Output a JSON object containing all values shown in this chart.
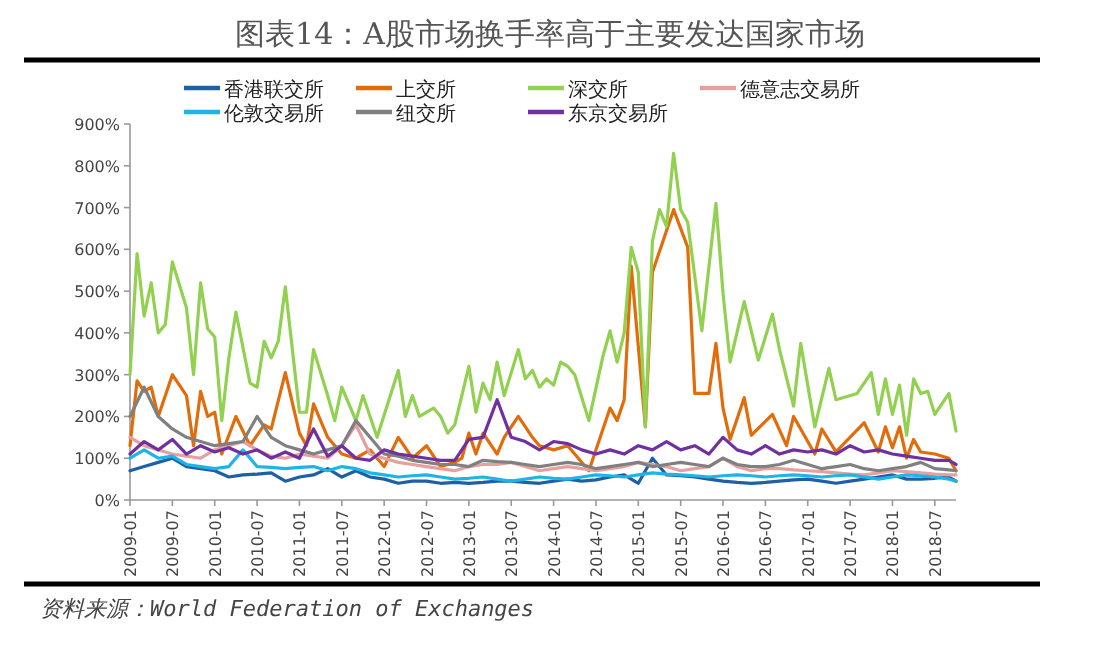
{
  "chart_data": {
    "type": "line",
    "title": "图表14：A股市场换手率高于主要发达国家市场",
    "annotations": [
      "资料来源：World Federation of Exchanges"
    ],
    "legend": "top",
    "marker": "none",
    "line_style": "solid",
    "ylim": [
      0,
      900
    ],
    "yticks": [
      {
        "value": 0,
        "label": "0%"
      },
      {
        "value": 100,
        "label": "100%"
      },
      {
        "value": 200,
        "label": "200%"
      },
      {
        "value": 300,
        "label": "300%"
      },
      {
        "value": 400,
        "label": "400%"
      },
      {
        "value": 500,
        "label": "500%"
      },
      {
        "value": 600,
        "label": "600%"
      },
      {
        "value": 700,
        "label": "700%"
      },
      {
        "value": 800,
        "label": "800%"
      },
      {
        "value": 900,
        "label": "900%"
      }
    ],
    "xlim": [
      "2009-01",
      "2018-10"
    ],
    "xticks": [
      "2009-01",
      "2009-07",
      "2010-01",
      "2010-07",
      "2011-01",
      "2011-07",
      "2012-01",
      "2012-07",
      "2013-01",
      "2013-07",
      "2014-01",
      "2014-07",
      "2015-01",
      "2015-07",
      "2016-01",
      "2016-07",
      "2017-01",
      "2017-07",
      "2018-01",
      "2018-07"
    ],
    "x": [
      "2009-01",
      "2009-03",
      "2009-05",
      "2009-07",
      "2009-09",
      "2009-11",
      "2010-01",
      "2010-03",
      "2010-05",
      "2010-07",
      "2010-09",
      "2010-11",
      "2011-01",
      "2011-03",
      "2011-05",
      "2011-07",
      "2011-09",
      "2011-11",
      "2012-01",
      "2012-03",
      "2012-05",
      "2012-07",
      "2012-09",
      "2012-11",
      "2013-01",
      "2013-03",
      "2013-05",
      "2013-07",
      "2013-09",
      "2013-11",
      "2014-01",
      "2014-03",
      "2014-05",
      "2014-07",
      "2014-09",
      "2014-11",
      "2015-01",
      "2015-03",
      "2015-05",
      "2015-07",
      "2015-09",
      "2015-11",
      "2016-01",
      "2016-03",
      "2016-05",
      "2016-07",
      "2016-09",
      "2016-11",
      "2017-01",
      "2017-03",
      "2017-05",
      "2017-07",
      "2017-09",
      "2017-11",
      "2018-01",
      "2018-03",
      "2018-05",
      "2018-07",
      "2018-09",
      "2018-10"
    ],
    "series": [
      {
        "name": "香港联交所",
        "color": "#1f5fa6",
        "values": [
          70,
          80,
          90,
          100,
          80,
          75,
          70,
          55,
          60,
          62,
          65,
          45,
          55,
          60,
          75,
          55,
          70,
          55,
          50,
          40,
          45,
          45,
          40,
          42,
          40,
          42,
          45,
          45,
          42,
          40,
          45,
          50,
          45,
          48,
          55,
          60,
          40,
          100,
          60,
          58,
          55,
          50,
          45,
          42,
          40,
          42,
          45,
          48,
          50,
          45,
          40,
          45,
          50,
          55,
          60,
          50,
          50,
          52,
          55,
          45
        ]
      },
      {
        "name": "上交所",
        "color": "#e36c0a",
        "x": [
          "2009-01",
          "2009-02",
          "2009-03",
          "2009-04",
          "2009-05",
          "2009-07",
          "2009-09",
          "2009-10",
          "2009-11",
          "2009-12",
          "2010-01",
          "2010-02",
          "2010-04",
          "2010-06",
          "2010-08",
          "2010-09",
          "2010-11",
          "2011-01",
          "2011-02",
          "2011-03",
          "2011-05",
          "2011-07",
          "2011-09",
          "2011-11",
          "2012-01",
          "2012-03",
          "2012-05",
          "2012-07",
          "2012-09",
          "2012-11",
          "2012-12",
          "2013-01",
          "2013-02",
          "2013-03",
          "2013-05",
          "2013-06",
          "2013-08",
          "2013-10",
          "2013-11",
          "2014-01",
          "2014-03",
          "2014-06",
          "2014-08",
          "2014-09",
          "2014-10",
          "2014-11",
          "2014-12",
          "2015-02",
          "2015-03",
          "2015-04",
          "2015-06",
          "2015-08",
          "2015-09",
          "2015-11",
          "2015-12",
          "2016-01",
          "2016-02",
          "2016-04",
          "2016-05",
          "2016-08",
          "2016-10",
          "2016-11",
          "2017-02",
          "2017-03",
          "2017-05",
          "2017-09",
          "2017-11",
          "2017-12",
          "2018-01",
          "2018-02",
          "2018-03",
          "2018-04",
          "2018-05",
          "2018-07",
          "2018-09",
          "2018-10"
        ],
        "values": [
          130,
          285,
          260,
          270,
          200,
          300,
          250,
          130,
          260,
          200,
          210,
          110,
          200,
          130,
          180,
          170,
          305,
          160,
          130,
          230,
          150,
          110,
          100,
          120,
          80,
          150,
          100,
          130,
          80,
          90,
          100,
          160,
          110,
          160,
          110,
          150,
          200,
          150,
          130,
          120,
          130,
          70,
          170,
          220,
          190,
          240,
          560,
          175,
          545,
          595,
          695,
          605,
          255,
          255,
          375,
          220,
          145,
          245,
          155,
          205,
          130,
          200,
          110,
          170,
          115,
          185,
          115,
          175,
          125,
          175,
          100,
          145,
          115,
          110,
          100,
          70
        ]
      },
      {
        "name": "深交所",
        "color": "#92d050",
        "x": [
          "2009-01",
          "2009-02",
          "2009-03",
          "2009-04",
          "2009-05",
          "2009-06",
          "2009-07",
          "2009-09",
          "2009-10",
          "2009-11",
          "2009-12",
          "2010-01",
          "2010-02",
          "2010-03",
          "2010-04",
          "2010-06",
          "2010-07",
          "2010-08",
          "2010-09",
          "2010-10",
          "2010-11",
          "2011-01",
          "2011-02",
          "2011-03",
          "2011-05",
          "2011-06",
          "2011-07",
          "2011-09",
          "2011-10",
          "2011-12",
          "2012-03",
          "2012-04",
          "2012-05",
          "2012-06",
          "2012-08",
          "2012-09",
          "2012-10",
          "2012-11",
          "2013-01",
          "2013-02",
          "2013-03",
          "2013-04",
          "2013-05",
          "2013-06",
          "2013-08",
          "2013-09",
          "2013-10",
          "2013-11",
          "2013-12",
          "2014-01",
          "2014-02",
          "2014-03",
          "2014-04",
          "2014-06",
          "2014-08",
          "2014-09",
          "2014-10",
          "2014-11",
          "2014-12",
          "2015-01",
          "2015-02",
          "2015-03",
          "2015-04",
          "2015-05",
          "2015-06",
          "2015-07",
          "2015-08",
          "2015-10",
          "2015-12",
          "2016-01",
          "2016-02",
          "2016-04",
          "2016-06",
          "2016-08",
          "2016-09",
          "2016-11",
          "2016-12",
          "2017-02",
          "2017-04",
          "2017-05",
          "2017-08",
          "2017-10",
          "2017-11",
          "2017-12",
          "2018-01",
          "2018-02",
          "2018-03",
          "2018-04",
          "2018-05",
          "2018-06",
          "2018-07",
          "2018-09",
          "2018-10"
        ],
        "values": [
          300,
          590,
          440,
          520,
          400,
          420,
          570,
          460,
          300,
          520,
          410,
          390,
          190,
          340,
          450,
          280,
          270,
          380,
          340,
          380,
          510,
          210,
          210,
          360,
          250,
          190,
          270,
          190,
          250,
          150,
          310,
          200,
          250,
          200,
          220,
          200,
          160,
          180,
          320,
          210,
          280,
          240,
          330,
          250,
          360,
          290,
          310,
          270,
          290,
          275,
          330,
          320,
          300,
          190,
          345,
          405,
          330,
          400,
          605,
          545,
          175,
          620,
          695,
          655,
          830,
          695,
          665,
          405,
          710,
          495,
          330,
          475,
          335,
          445,
          360,
          225,
          375,
          175,
          315,
          240,
          255,
          305,
          205,
          290,
          205,
          275,
          155,
          290,
          255,
          260,
          205,
          255,
          165
        ]
      },
      {
        "name": "德意志交易所",
        "color": "#e6a0a0",
        "values": [
          150,
          130,
          120,
          110,
          105,
          100,
          120,
          130,
          140,
          120,
          105,
          100,
          110,
          105,
          100,
          130,
          180,
          110,
          100,
          90,
          85,
          80,
          75,
          70,
          80,
          85,
          85,
          90,
          80,
          70,
          75,
          80,
          75,
          70,
          75,
          80,
          90,
          85,
          80,
          70,
          75,
          80,
          100,
          80,
          70,
          75,
          75,
          72,
          70,
          68,
          65,
          62,
          60,
          65,
          70,
          68,
          65,
          62,
          60,
          60
        ]
      },
      {
        "name": "伦敦交易所",
        "color": "#1fb4e6",
        "values": [
          100,
          120,
          100,
          105,
          85,
          80,
          75,
          80,
          120,
          80,
          78,
          75,
          78,
          80,
          70,
          80,
          75,
          65,
          60,
          55,
          58,
          60,
          55,
          50,
          52,
          55,
          50,
          45,
          50,
          55,
          52,
          50,
          55,
          60,
          58,
          55,
          60,
          65,
          62,
          60,
          58,
          55,
          58,
          60,
          58,
          55,
          58,
          60,
          58,
          55,
          58,
          60,
          55,
          50,
          55,
          60,
          58,
          55,
          50,
          45
        ]
      },
      {
        "name": "纽交所",
        "color": "#808080",
        "values": [
          200,
          270,
          200,
          170,
          150,
          140,
          130,
          135,
          140,
          200,
          150,
          130,
          120,
          110,
          120,
          130,
          190,
          150,
          110,
          105,
          95,
          90,
          85,
          85,
          80,
          95,
          92,
          90,
          85,
          80,
          85,
          90,
          85,
          75,
          80,
          85,
          90,
          80,
          85,
          90,
          85,
          80,
          100,
          85,
          80,
          80,
          85,
          95,
          85,
          75,
          80,
          85,
          75,
          70,
          75,
          80,
          90,
          75,
          72,
          70
        ]
      },
      {
        "name": "东京交易所",
        "color": "#7030a0",
        "values": [
          110,
          140,
          120,
          145,
          110,
          130,
          115,
          125,
          110,
          120,
          100,
          115,
          100,
          170,
          105,
          130,
          100,
          95,
          120,
          110,
          105,
          100,
          95,
          95,
          145,
          150,
          240,
          150,
          140,
          120,
          140,
          135,
          120,
          110,
          120,
          110,
          130,
          120,
          140,
          120,
          130,
          110,
          150,
          120,
          110,
          130,
          110,
          120,
          115,
          120,
          110,
          130,
          115,
          120,
          110,
          105,
          100,
          95,
          95,
          85
        ]
      }
    ]
  }
}
